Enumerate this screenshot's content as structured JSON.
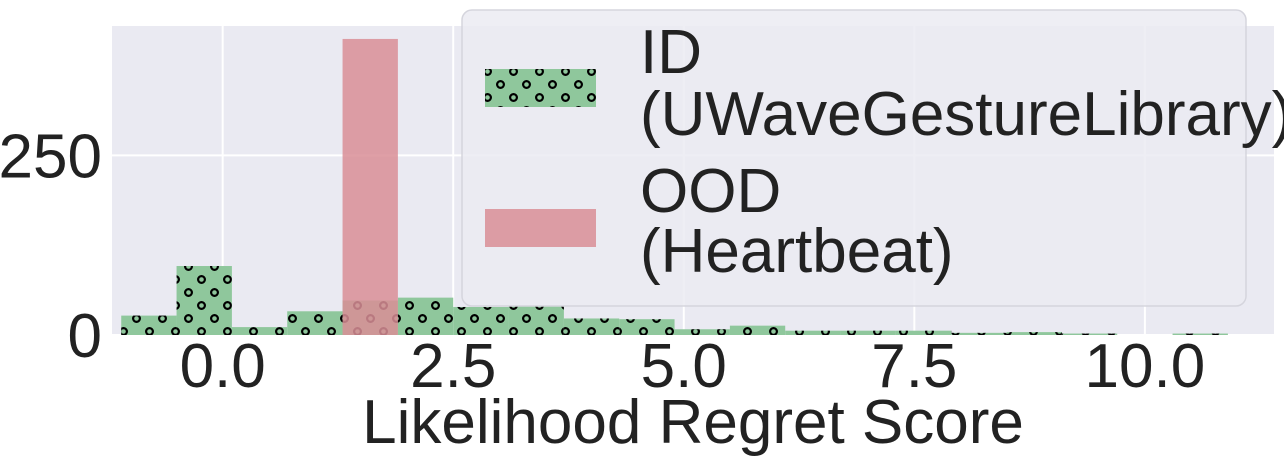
{
  "chart_data": {
    "type": "bar",
    "subtype": "histogram",
    "xlabel": "Likelihood Regret Score",
    "ylabel": "",
    "xlim": [
      -1.2,
      11.4
    ],
    "ylim": [
      0,
      430
    ],
    "xticks": [
      0.0,
      2.5,
      5.0,
      7.5,
      10.0
    ],
    "xtick_labels": [
      "0.0",
      "2.5",
      "5.0",
      "7.5",
      "10.0"
    ],
    "yticks": [
      0,
      250
    ],
    "ytick_labels": [
      "0",
      "250"
    ],
    "grid": true,
    "legend_placement": "top-right",
    "series": [
      {
        "name": "ID (UWaveGestureLibrary)",
        "legend_lines": [
          "ID",
          "(UWaveGestureLibrary)"
        ],
        "color": "#8fc79c",
        "hatch": "circles",
        "bins": [
          {
            "x0": -1.1,
            "x1": -0.5,
            "value": 27
          },
          {
            "x0": -0.5,
            "x1": 0.1,
            "value": 96
          },
          {
            "x0": 0.1,
            "x1": 0.7,
            "value": 11
          },
          {
            "x0": 0.7,
            "x1": 1.3,
            "value": 33
          },
          {
            "x0": 1.3,
            "x1": 1.9,
            "value": 48
          },
          {
            "x0": 1.9,
            "x1": 2.5,
            "value": 52
          },
          {
            "x0": 2.5,
            "x1": 3.1,
            "value": 39
          },
          {
            "x0": 3.1,
            "x1": 3.7,
            "value": 40
          },
          {
            "x0": 3.7,
            "x1": 4.3,
            "value": 23
          },
          {
            "x0": 4.3,
            "x1": 4.9,
            "value": 22
          },
          {
            "x0": 4.9,
            "x1": 5.5,
            "value": 8
          },
          {
            "x0": 5.5,
            "x1": 6.1,
            "value": 13
          },
          {
            "x0": 6.1,
            "x1": 6.7,
            "value": 6
          },
          {
            "x0": 6.7,
            "x1": 7.3,
            "value": 6
          },
          {
            "x0": 7.3,
            "x1": 7.9,
            "value": 6
          },
          {
            "x0": 7.9,
            "x1": 8.5,
            "value": 3
          },
          {
            "x0": 8.5,
            "x1": 9.1,
            "value": 4
          },
          {
            "x0": 9.1,
            "x1": 9.7,
            "value": 2
          },
          {
            "x0": 9.7,
            "x1": 10.3,
            "value": 0
          },
          {
            "x0": 10.3,
            "x1": 10.9,
            "value": 2
          }
        ]
      },
      {
        "name": "OOD (Heartbeat)",
        "legend_lines": [
          "OOD",
          "(Heartbeat)"
        ],
        "color": "#d98e96",
        "bins": [
          {
            "x0": 1.3,
            "x1": 1.9,
            "value": 412
          }
        ]
      }
    ]
  }
}
